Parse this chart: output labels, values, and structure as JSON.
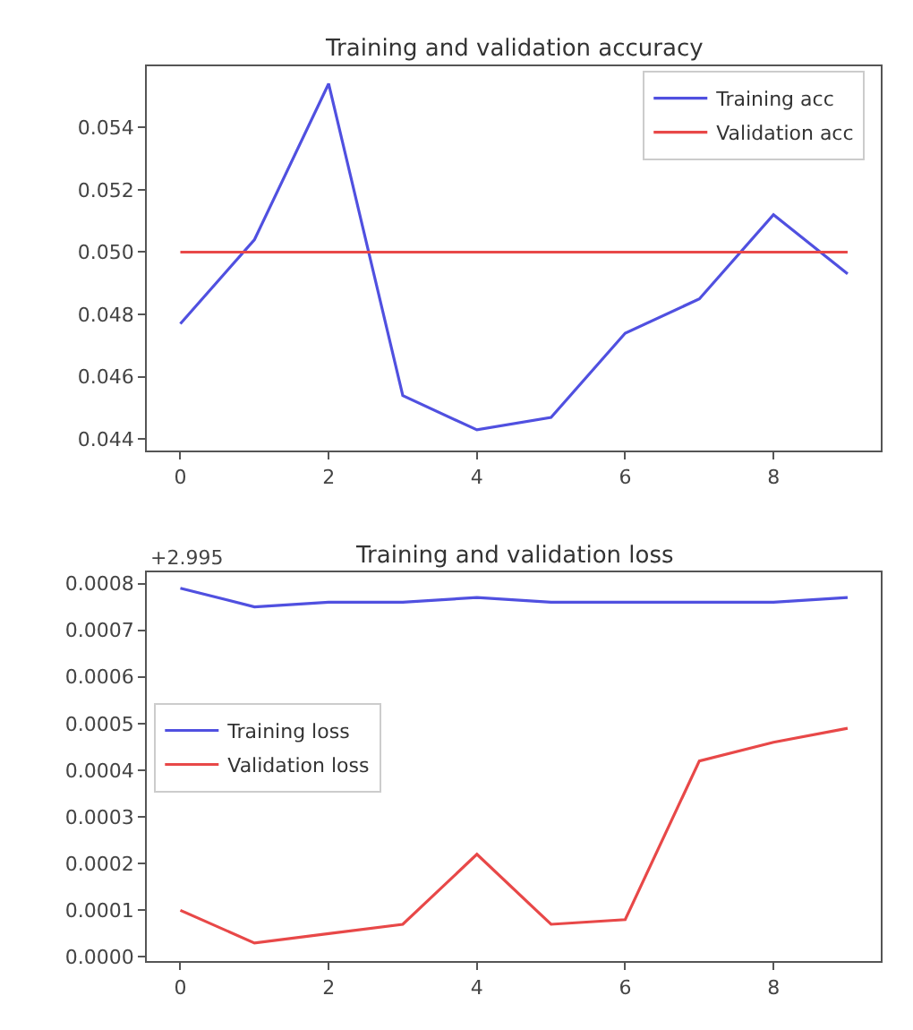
{
  "chart_data": [
    {
      "type": "line",
      "title": "Training and validation accuracy",
      "x": [
        0,
        1,
        2,
        3,
        4,
        5,
        6,
        7,
        8,
        9
      ],
      "xlim": [
        -0.45,
        9.45
      ],
      "xticks": [
        0,
        2,
        4,
        6,
        8
      ],
      "ylim": [
        0.04363,
        0.05595
      ],
      "yticks": [
        {
          "value": 0.044,
          "label": "0.044"
        },
        {
          "value": 0.046,
          "label": "0.046"
        },
        {
          "value": 0.048,
          "label": "0.048"
        },
        {
          "value": 0.05,
          "label": "0.050"
        },
        {
          "value": 0.052,
          "label": "0.052"
        },
        {
          "value": 0.054,
          "label": "0.054"
        }
      ],
      "legend": "top right",
      "series": [
        {
          "name": "Training acc",
          "color": "#5050e0",
          "values": [
            0.0477,
            0.0504,
            0.0554,
            0.0454,
            0.0443,
            0.0447,
            0.0474,
            0.0485,
            0.0512,
            0.0493
          ]
        },
        {
          "name": "Validation acc",
          "color": "#e84848",
          "values": [
            0.05,
            0.05,
            0.05,
            0.05,
            0.05,
            0.05,
            0.05,
            0.05,
            0.05,
            0.05
          ]
        }
      ]
    },
    {
      "type": "line",
      "title": "Training and validation loss",
      "annotations": [
        "+2.995"
      ],
      "x": [
        0,
        1,
        2,
        3,
        4,
        5,
        6,
        7,
        8,
        9
      ],
      "xlim": [
        -0.45,
        9.45
      ],
      "xticks": [
        0,
        2,
        4,
        6,
        8
      ],
      "ylim": [
        -9.5e-06,
        0.000824
      ],
      "yticks": [
        {
          "value": 0,
          "label": "0.0000"
        },
        {
          "value": 0.0001,
          "label": "0.0001"
        },
        {
          "value": 0.0002,
          "label": "0.0002"
        },
        {
          "value": 0.0003,
          "label": "0.0003"
        },
        {
          "value": 0.0004,
          "label": "0.0004"
        },
        {
          "value": 0.0005,
          "label": "0.0005"
        },
        {
          "value": 0.0006,
          "label": "0.0006"
        },
        {
          "value": 0.0007,
          "label": "0.0007"
        },
        {
          "value": 0.0008,
          "label": "0.0008"
        }
      ],
      "legend": "left",
      "series": [
        {
          "name": "Training loss",
          "color": "#5050e0",
          "values": [
            0.00079,
            0.00075,
            0.00076,
            0.00076,
            0.00077,
            0.00076,
            0.00076,
            0.00076,
            0.00076,
            0.00077
          ]
        },
        {
          "name": "Validation loss",
          "color": "#e84848",
          "values": [
            0.0001,
            3e-05,
            5e-05,
            7e-05,
            0.00022,
            7e-05,
            8e-05,
            0.00042,
            0.00046,
            0.00049
          ]
        }
      ]
    }
  ]
}
